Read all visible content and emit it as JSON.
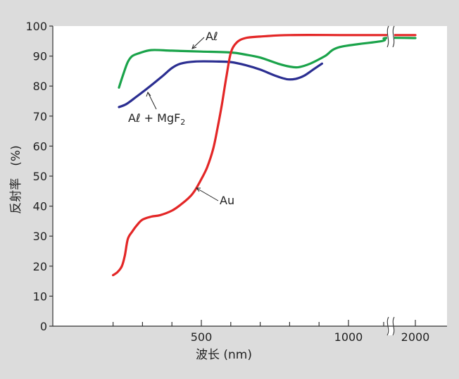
{
  "chart_data": {
    "type": "line",
    "title": "",
    "xlabel": "波长 (nm)",
    "ylabel": "反射率　(%)",
    "ylim": [
      0,
      100
    ],
    "y_ticks": [
      0,
      10,
      20,
      30,
      40,
      50,
      60,
      70,
      80,
      90,
      100
    ],
    "x_tick_labels": [
      {
        "value": 500,
        "label": "500"
      },
      {
        "value": 1000,
        "label": "1000"
      },
      {
        "value": 2000,
        "label": "2000"
      }
    ],
    "x_break": "between 1000 and 2000",
    "grid": false,
    "series": [
      {
        "name": "Aℓ",
        "color": "#1aa34a",
        "points": [
          [
            220,
            79.5
          ],
          [
            235,
            84
          ],
          [
            250,
            88
          ],
          [
            265,
            90
          ],
          [
            290,
            91
          ],
          [
            330,
            92
          ],
          [
            400,
            91.8
          ],
          [
            500,
            91.5
          ],
          [
            600,
            91.2
          ],
          [
            650,
            90.5
          ],
          [
            700,
            89.5
          ],
          [
            760,
            87.5
          ],
          [
            800,
            86.5
          ],
          [
            830,
            86.3
          ],
          [
            870,
            87.5
          ],
          [
            920,
            90
          ],
          [
            970,
            93
          ],
          [
            1050,
            95
          ],
          [
            1150,
            96
          ],
          [
            2000,
            96
          ]
        ]
      },
      {
        "name": "Aℓ + MgF₂",
        "color": "#2b2e91",
        "points": [
          [
            220,
            73
          ],
          [
            245,
            74
          ],
          [
            280,
            76.5
          ],
          [
            320,
            79.5
          ],
          [
            370,
            83.5
          ],
          [
            400,
            86
          ],
          [
            430,
            87.5
          ],
          [
            480,
            88.2
          ],
          [
            550,
            88.2
          ],
          [
            600,
            88
          ],
          [
            650,
            87
          ],
          [
            700,
            85.5
          ],
          [
            750,
            83.5
          ],
          [
            790,
            82.3
          ],
          [
            820,
            82.4
          ],
          [
            850,
            83.5
          ],
          [
            880,
            85.5
          ],
          [
            910,
            87.5
          ]
        ]
      },
      {
        "name": "Au",
        "color": "#e32626",
        "points": [
          [
            200,
            17
          ],
          [
            215,
            18
          ],
          [
            230,
            20
          ],
          [
            240,
            23.5
          ],
          [
            250,
            29
          ],
          [
            265,
            31.5
          ],
          [
            280,
            33.5
          ],
          [
            300,
            35.5
          ],
          [
            330,
            36.5
          ],
          [
            360,
            37
          ],
          [
            400,
            38.5
          ],
          [
            430,
            40.5
          ],
          [
            460,
            43
          ],
          [
            480,
            45.5
          ],
          [
            500,
            49
          ],
          [
            520,
            53
          ],
          [
            540,
            59
          ],
          [
            555,
            66
          ],
          [
            570,
            74
          ],
          [
            585,
            83
          ],
          [
            600,
            91
          ],
          [
            620,
            94.5
          ],
          [
            650,
            96
          ],
          [
            700,
            96.5
          ],
          [
            800,
            97
          ],
          [
            1000,
            97
          ],
          [
            2000,
            97
          ]
        ]
      }
    ],
    "annotations": [
      {
        "label": "Aℓ",
        "series": "Aℓ"
      },
      {
        "label": "Aℓ + MgF",
        "subscript": "2",
        "series": "Aℓ + MgF₂"
      },
      {
        "label": "Au",
        "series": "Au"
      }
    ]
  }
}
